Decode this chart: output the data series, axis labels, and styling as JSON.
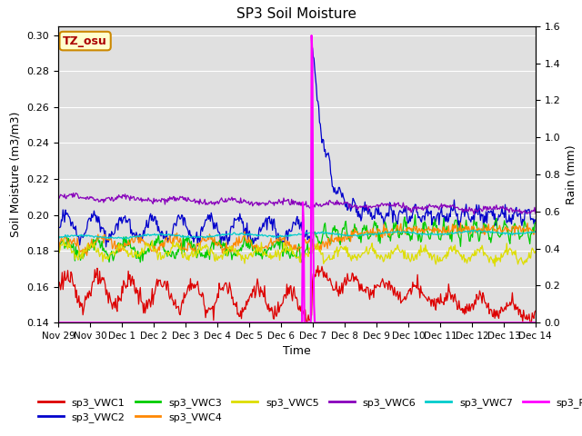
{
  "title": "SP3 Soil Moisture",
  "xlabel": "Time",
  "ylabel_left": "Soil Moisture (m3/m3)",
  "ylabel_right": "Rain (mm)",
  "ylim_left": [
    0.14,
    0.305
  ],
  "ylim_right": [
    0.0,
    1.6
  ],
  "bg_color": "#e0e0e0",
  "annotation_text": "TZ_osu",
  "annotation_color": "#aa0000",
  "annotation_bg": "#ffffcc",
  "annotation_border": "#cc8800",
  "series_colors": {
    "sp3_VWC1": "#dd0000",
    "sp3_VWC2": "#0000cc",
    "sp3_VWC3": "#00cc00",
    "sp3_VWC4": "#ff8800",
    "sp3_VWC5": "#dddd00",
    "sp3_VWC6": "#8800bb",
    "sp3_VWC7": "#00cccc",
    "sp3_Rain": "#ff00ff"
  },
  "tick_labels": [
    "Nov 29",
    "Nov 30",
    "Dec 1",
    "Dec 2",
    "Dec 3",
    "Dec 4",
    "Dec 5",
    "Dec 6",
    "Dec 7",
    "Dec 8",
    "Dec 9",
    "Dec 10",
    "Dec 11",
    "Dec 12",
    "Dec 13",
    "Dec 14"
  ],
  "rain_day": 8,
  "n_points": 600
}
